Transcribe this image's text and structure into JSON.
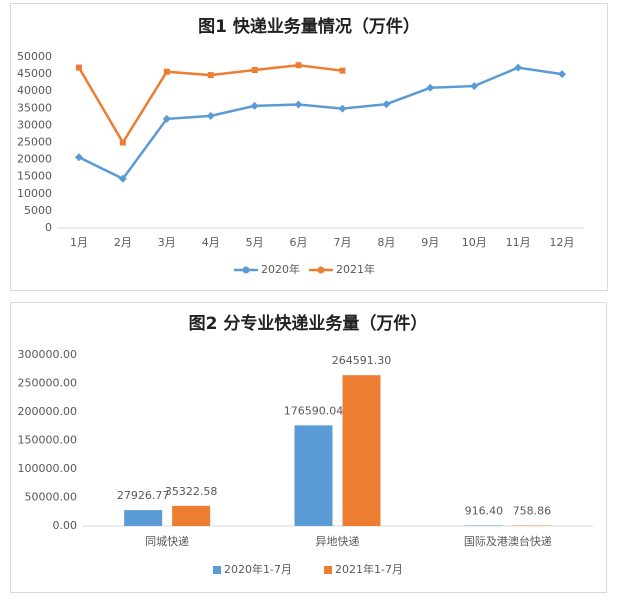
{
  "chart_data": [
    {
      "type": "line",
      "title": "图1 快递业务量情况（万件）",
      "categories": [
        "1月",
        "2月",
        "3月",
        "4月",
        "5月",
        "6月",
        "7月",
        "8月",
        "9月",
        "10月",
        "11月",
        "12月"
      ],
      "series": [
        {
          "name": "2020年",
          "color": "#5b9bd5",
          "values": [
            20700,
            14400,
            31900,
            32800,
            35700,
            36100,
            34900,
            36200,
            41000,
            41500,
            46900,
            45000
          ]
        },
        {
          "name": "2021年",
          "color": "#ed7d31",
          "values": [
            46900,
            25000,
            45700,
            44700,
            46200,
            47600,
            46000,
            null,
            null,
            null,
            null,
            null
          ]
        }
      ],
      "ylim": [
        0,
        50000
      ],
      "yticks": [
        0,
        5000,
        10000,
        15000,
        20000,
        25000,
        30000,
        35000,
        40000,
        45000,
        50000
      ],
      "grid": false,
      "legend": "bottom"
    },
    {
      "type": "bar",
      "title": "图2 分专业快递业务量（万件）",
      "categories": [
        "同城快递",
        "异地快递",
        "国际及港澳台快递"
      ],
      "series": [
        {
          "name": "2020年1-7月",
          "color": "#5b9bd5",
          "values": [
            27926.77,
            176590.04,
            916.4
          ],
          "value_labels": [
            "27926.77",
            "176590.04",
            "916.40"
          ]
        },
        {
          "name": "2021年1-7月",
          "color": "#ed7d31",
          "values": [
            35322.58,
            264591.3,
            758.86
          ],
          "value_labels": [
            "35322.58",
            "264591.30",
            "758.86"
          ]
        }
      ],
      "ylim": [
        0,
        300000
      ],
      "yticks": [
        {
          "value": 0,
          "label": "0.00"
        },
        {
          "value": 50000,
          "label": "50000.00"
        },
        {
          "value": 100000,
          "label": "100000.00"
        },
        {
          "value": 150000,
          "label": "150000.00"
        },
        {
          "value": 200000,
          "label": "200000.00"
        },
        {
          "value": 250000,
          "label": "250000.00"
        },
        {
          "value": 300000,
          "label": "300000.00"
        }
      ],
      "grid": false,
      "legend": "bottom"
    }
  ]
}
